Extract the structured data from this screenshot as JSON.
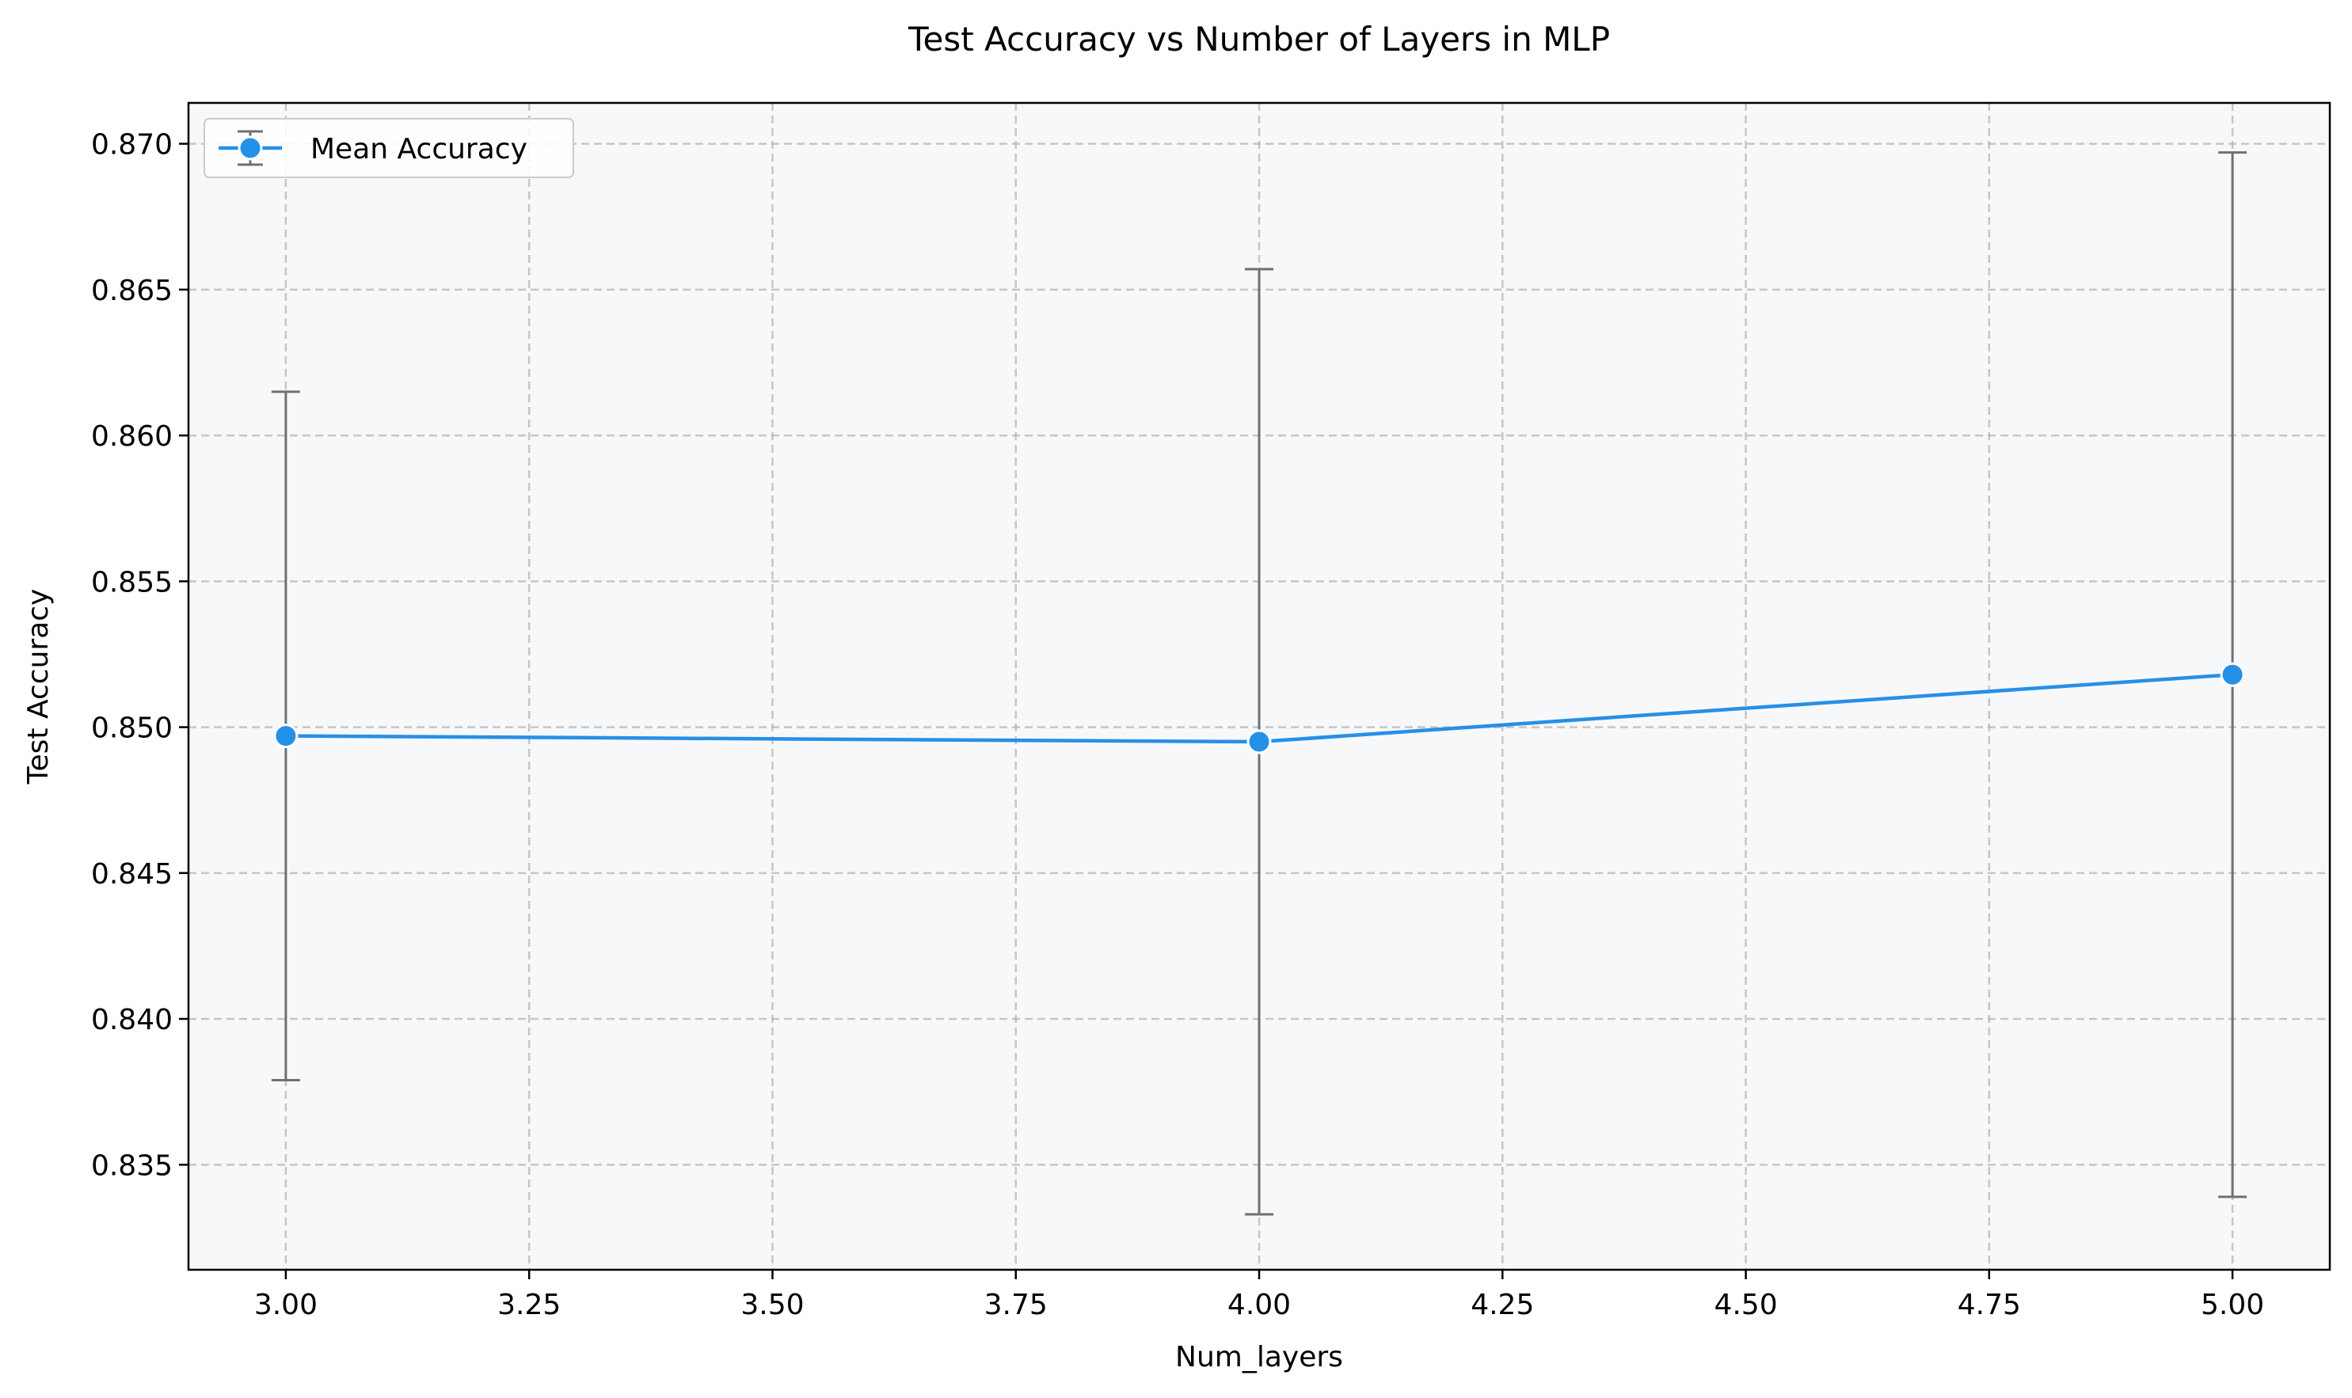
{
  "chart_data": {
    "type": "line",
    "title": "Test Accuracy vs Number of Layers in MLP",
    "xlabel": "Num_layers",
    "ylabel": "Test Accuracy",
    "xlim": [
      2.9,
      5.1
    ],
    "ylim": [
      0.8314,
      0.8714
    ],
    "x_ticks": [
      3.0,
      3.25,
      3.5,
      3.75,
      4.0,
      4.25,
      4.5,
      4.75,
      5.0
    ],
    "x_tick_labels": [
      "3.00",
      "3.25",
      "3.50",
      "3.75",
      "4.00",
      "4.25",
      "4.50",
      "4.75",
      "5.00"
    ],
    "y_ticks": [
      0.835,
      0.84,
      0.845,
      0.85,
      0.855,
      0.86,
      0.865,
      0.87
    ],
    "y_tick_labels": [
      "0.835",
      "0.840",
      "0.845",
      "0.850",
      "0.855",
      "0.860",
      "0.865",
      "0.870"
    ],
    "grid": true,
    "legend": {
      "position": "top-left",
      "entries": [
        "Mean Accuracy"
      ]
    },
    "series": [
      {
        "name": "Mean Accuracy",
        "color": "#2590e8",
        "errorbar_color": "#707070",
        "x": [
          3,
          4,
          5
        ],
        "y": [
          0.8497,
          0.8495,
          0.8518
        ],
        "err": [
          0.0118,
          0.0162,
          0.0179
        ]
      }
    ],
    "plot_background": "#f7f8fa"
  }
}
